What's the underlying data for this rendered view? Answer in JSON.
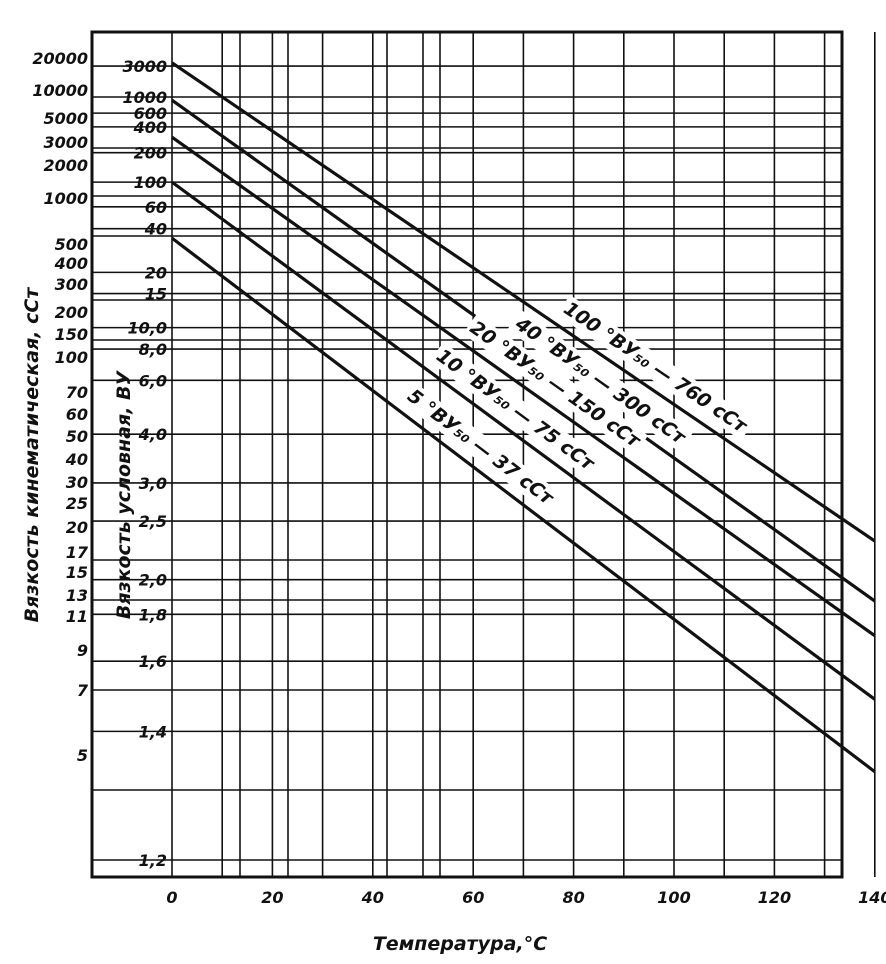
{
  "chart_data": {
    "type": "line",
    "title": "",
    "xlabel": "Температура,°С",
    "ylabel_left": "Вязкость кинематическая, сСт",
    "ylabel_inner": "Вязкость условная, ВУ",
    "xlim": [
      0,
      140
    ],
    "x_ticks": [
      "0",
      "20",
      "40",
      "60",
      "80",
      "100",
      "120",
      "140"
    ],
    "y_ticks_kinematic": [
      "20000",
      "10000",
      "5000",
      "3000",
      "2000",
      "1000",
      "500",
      "400",
      "300",
      "200",
      "150",
      "100",
      "70",
      "60",
      "50",
      "40",
      "30",
      "25",
      "20",
      "17",
      "15",
      "13",
      "11",
      "9",
      "7",
      "5"
    ],
    "y_ticks_conditional": [
      "3000",
      "1000",
      "600",
      "400",
      "200",
      "100",
      "60",
      "40",
      "20",
      "15",
      "10,0",
      "8,0",
      "6,0",
      "4,0",
      "3,0",
      "2,5",
      "2,0",
      "1,8",
      "1,6",
      "1,4",
      "1,2"
    ],
    "grid": true,
    "series": [
      {
        "name": "100 °ВУ₅₀ — 760 сСт",
        "x": [
          0,
          140
        ],
        "y_vu": [
          3400,
          2.3
        ]
      },
      {
        "name": "40 °ВУ₅₀ — 300 сСт",
        "x": [
          0,
          140
        ],
        "y_vu": [
          900,
          1.87
        ]
      },
      {
        "name": "20 °ВУ₅₀ — 150 сСт",
        "x": [
          0,
          140
        ],
        "y_vu": [
          300,
          1.7
        ]
      },
      {
        "name": "10 °ВУ₅₀ — 75 сСт",
        "x": [
          0,
          140
        ],
        "y_vu": [
          100,
          1.48
        ]
      },
      {
        "name": "5 °ВУ₅₀ — 37 сСт",
        "x": [
          0,
          140
        ],
        "y_vu": [
          34,
          1.32
        ]
      }
    ]
  }
}
